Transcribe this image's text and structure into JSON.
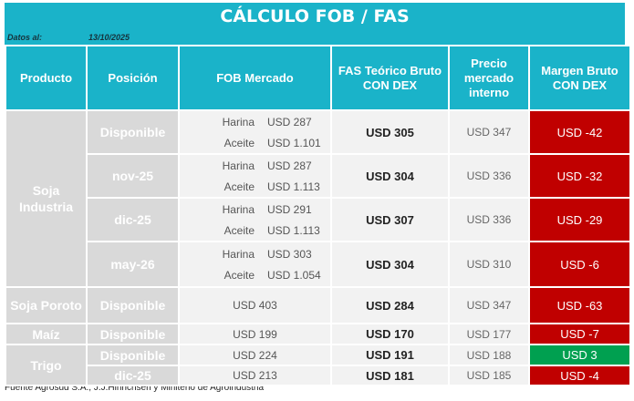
{
  "title": "CÁLCULO FOB / FAS",
  "date_label": "Datos al:",
  "date_value": "13/10/2025",
  "headers": {
    "producto": "Producto",
    "posicion": "Posición",
    "fob": "FOB Mercado",
    "fas": "FAS Teórico Bruto CON DEX",
    "precio": "Precio mercado interno",
    "margen": "Margen Bruto CON DEX"
  },
  "rows": [
    {
      "producto": "Soja Industria",
      "posicion": "Disponible",
      "fob": [
        {
          "k": "Harina",
          "v": "USD 287"
        },
        {
          "k": "Aceite",
          "v": "USD 1.101"
        }
      ],
      "fas": "USD 305",
      "precio": "USD 347",
      "margen": "USD -42",
      "margen_color": "#c00000"
    },
    {
      "producto": "",
      "posicion": "nov-25",
      "fob": [
        {
          "k": "Harina",
          "v": "USD 287"
        },
        {
          "k": "Aceite",
          "v": "USD 1.113"
        }
      ],
      "fas": "USD 304",
      "precio": "USD 336",
      "margen": "USD -32",
      "margen_color": "#c00000"
    },
    {
      "producto": "",
      "posicion": "dic-25",
      "fob": [
        {
          "k": "Harina",
          "v": "USD 291"
        },
        {
          "k": "Aceite",
          "v": "USD 1.113"
        }
      ],
      "fas": "USD 307",
      "precio": "USD 336",
      "margen": "USD -29",
      "margen_color": "#c00000"
    },
    {
      "producto": "",
      "posicion": "may-26",
      "fob": [
        {
          "k": "Harina",
          "v": "USD 303"
        },
        {
          "k": "Aceite",
          "v": "USD 1.054"
        }
      ],
      "fas": "USD 304",
      "precio": "USD 310",
      "margen": "USD -6",
      "margen_color": "#c00000"
    },
    {
      "producto": "Soja Poroto",
      "posicion": "Disponible",
      "fob": "USD 403",
      "fas": "USD 284",
      "precio": "USD 347",
      "margen": "USD -63",
      "margen_color": "#c00000"
    },
    {
      "producto": "Maíz",
      "posicion": "Disponible",
      "fob": "USD 199",
      "fas": "USD 170",
      "precio": "USD 177",
      "margen": "USD -7",
      "margen_color": "#c00000"
    },
    {
      "producto": "Trigo",
      "posicion": "Disponible",
      "fob": "USD 224",
      "fas": "USD 191",
      "precio": "USD 188",
      "margen": "USD 3",
      "margen_color": "#00a050"
    },
    {
      "producto": "",
      "posicion": "dic-25",
      "fob": "USD 213",
      "fas": "USD 181",
      "precio": "USD 185",
      "margen": "USD -4",
      "margen_color": "#c00000"
    }
  ],
  "footer": "Fuente Agrosud S.A., J.J.Hinrichsen y Miniterio de Agroindustria"
}
